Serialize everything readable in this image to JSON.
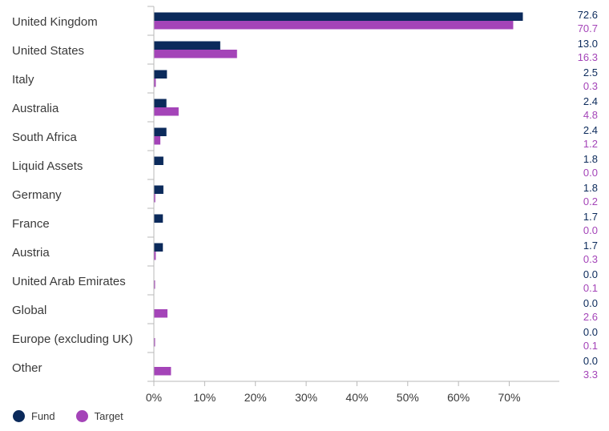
{
  "chart_data": {
    "type": "bar",
    "orientation": "horizontal",
    "categories": [
      "United Kingdom",
      "United States",
      "Italy",
      "Australia",
      "South Africa",
      "Liquid Assets",
      "Germany",
      "France",
      "Austria",
      "United Arab Emirates",
      "Global",
      "Europe (excluding UK)",
      "Other"
    ],
    "series": [
      {
        "name": "Fund",
        "color": "#0b2a5b",
        "values": [
          72.6,
          13.0,
          2.5,
          2.4,
          2.4,
          1.8,
          1.8,
          1.7,
          1.7,
          0.0,
          0.0,
          0.0,
          0.0
        ]
      },
      {
        "name": "Target",
        "color": "#a444b8",
        "values": [
          70.7,
          16.3,
          0.3,
          4.8,
          1.2,
          0.0,
          0.2,
          0.0,
          0.3,
          0.1,
          2.6,
          0.1,
          3.3
        ]
      }
    ],
    "value_labels": {
      "Fund": [
        "72.6",
        "13.0",
        "2.5",
        "2.4",
        "2.4",
        "1.8",
        "1.8",
        "1.7",
        "1.7",
        "0.0",
        "0.0",
        "0.0",
        "0.0"
      ],
      "Target": [
        "70.7",
        "16.3",
        "0.3",
        "4.8",
        "1.2",
        "0.0",
        "0.2",
        "0.0",
        "0.3",
        "0.1",
        "2.6",
        "0.1",
        "3.3"
      ]
    },
    "xticks": [
      0,
      10,
      20,
      30,
      40,
      50,
      60,
      70
    ],
    "xtick_labels": [
      "0%",
      "10%",
      "20%",
      "30%",
      "40%",
      "50%",
      "60%",
      "70%"
    ],
    "xlim": [
      0,
      80
    ],
    "title": "",
    "xlabel": "",
    "ylabel": "",
    "grid": false,
    "legend_position": "bottom-left"
  }
}
